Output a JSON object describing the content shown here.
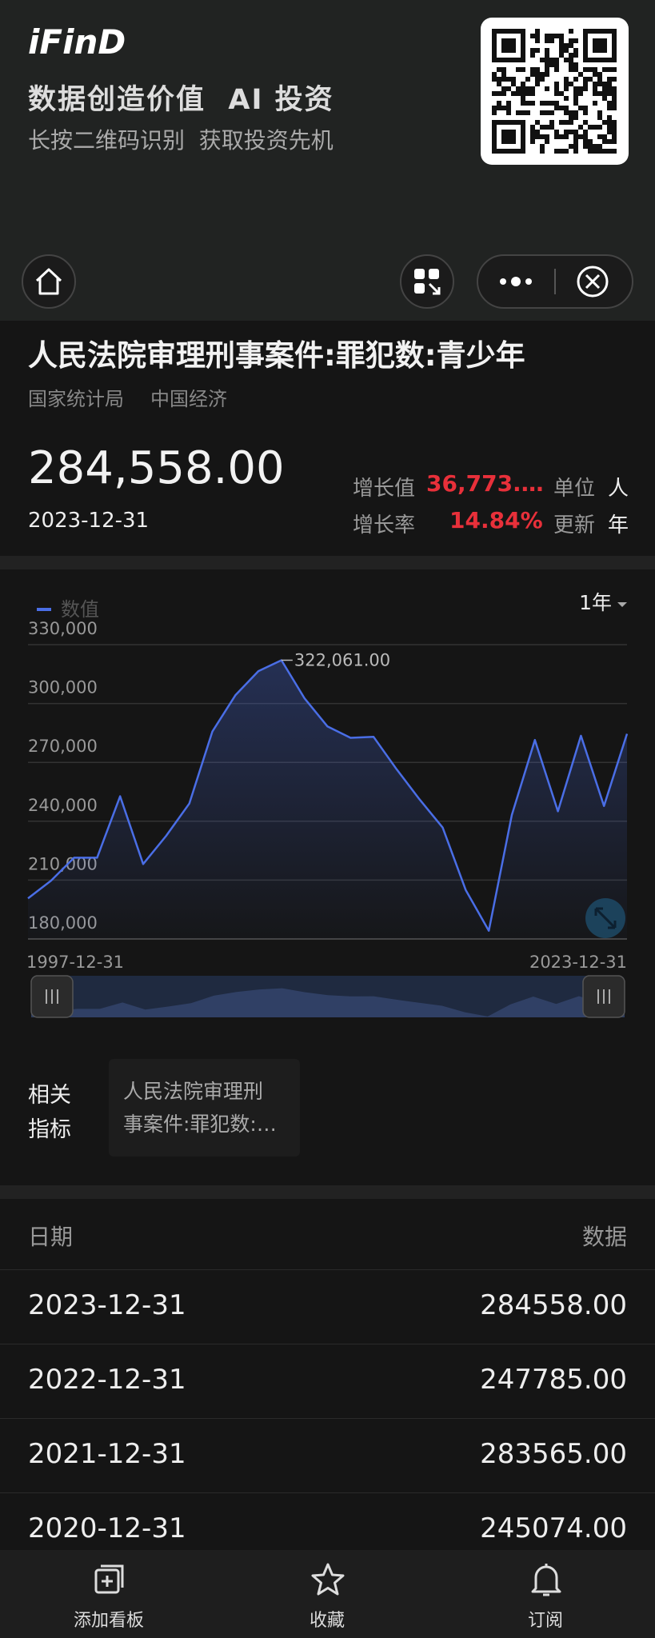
{
  "header": {
    "logo": "iFinD",
    "slogan": "数据创造价值  AI 投资",
    "hint": "长按二维码识别  获取投资先机"
  },
  "indicator": {
    "title": "人民法院审理刑事案件:罪犯数:青少年",
    "source": "国家统计局",
    "category": "中国经济",
    "latest_value": "284,558.00",
    "latest_date": "2023-12-31",
    "change_label": "增长值",
    "change_value": "36,773.…",
    "rate_label": "增长率",
    "rate_value": "14.84%",
    "unit_label": "单位",
    "unit": "人",
    "update_label": "更新",
    "update": "年"
  },
  "chart_data": {
    "type": "line",
    "range_selector": "1年",
    "x": [
      "1997-12-31",
      "1998-12-31",
      "1999-12-31",
      "2000-12-31",
      "2001-12-31",
      "2002-12-31",
      "2003-12-31",
      "2004-12-31",
      "2005-12-31",
      "2006-12-31",
      "2007-12-31",
      "2008-12-31",
      "2009-12-31",
      "2010-12-31",
      "2011-12-31",
      "2012-12-31",
      "2013-12-31",
      "2014-12-31",
      "2015-12-31",
      "2016-12-31",
      "2017-12-31",
      "2018-12-31",
      "2019-12-31",
      "2020-12-31",
      "2021-12-31",
      "2022-12-31",
      "2023-12-31"
    ],
    "series": [
      {
        "name": "数值",
        "color": "#4a6ee6",
        "values": [
          200700,
          209700,
          221400,
          221400,
          252700,
          218200,
          232600,
          249000,
          285700,
          304200,
          316500,
          322061,
          302700,
          288300,
          282500,
          283000,
          266500,
          251100,
          236800,
          205000,
          184200,
          243200,
          281400,
          245074,
          283565,
          247785,
          284558
        ],
        "value_labels": [
          null,
          null,
          null,
          null,
          null,
          null,
          null,
          null,
          null,
          null,
          null,
          "322,061.00",
          null,
          null,
          null,
          null,
          null,
          null,
          null,
          null,
          null,
          null,
          null,
          null,
          null,
          null,
          null
        ]
      }
    ],
    "ylim": [
      180000,
      330000
    ],
    "yticks": [
      {
        "value": 180000,
        "label": "180,000"
      },
      {
        "value": 210000,
        "label": "210,000"
      },
      {
        "value": 240000,
        "label": "240,000"
      },
      {
        "value": 270000,
        "label": "270,000"
      },
      {
        "value": 300000,
        "label": "300,000"
      },
      {
        "value": 330000,
        "label": "330,000"
      }
    ],
    "grid": true
  },
  "related": {
    "label": [
      "相关",
      "指标"
    ],
    "item": [
      "人民法院审理刑",
      "事案件:罪犯数:…"
    ]
  },
  "table": {
    "columns": [
      "日期",
      "数据"
    ],
    "rows": [
      [
        "2023-12-31",
        "284558.00"
      ],
      [
        "2022-12-31",
        "247785.00"
      ],
      [
        "2021-12-31",
        "283565.00"
      ],
      [
        "2020-12-31",
        "245074.00"
      ]
    ]
  },
  "nav": [
    "添加看板",
    "收藏",
    "订阅"
  ]
}
